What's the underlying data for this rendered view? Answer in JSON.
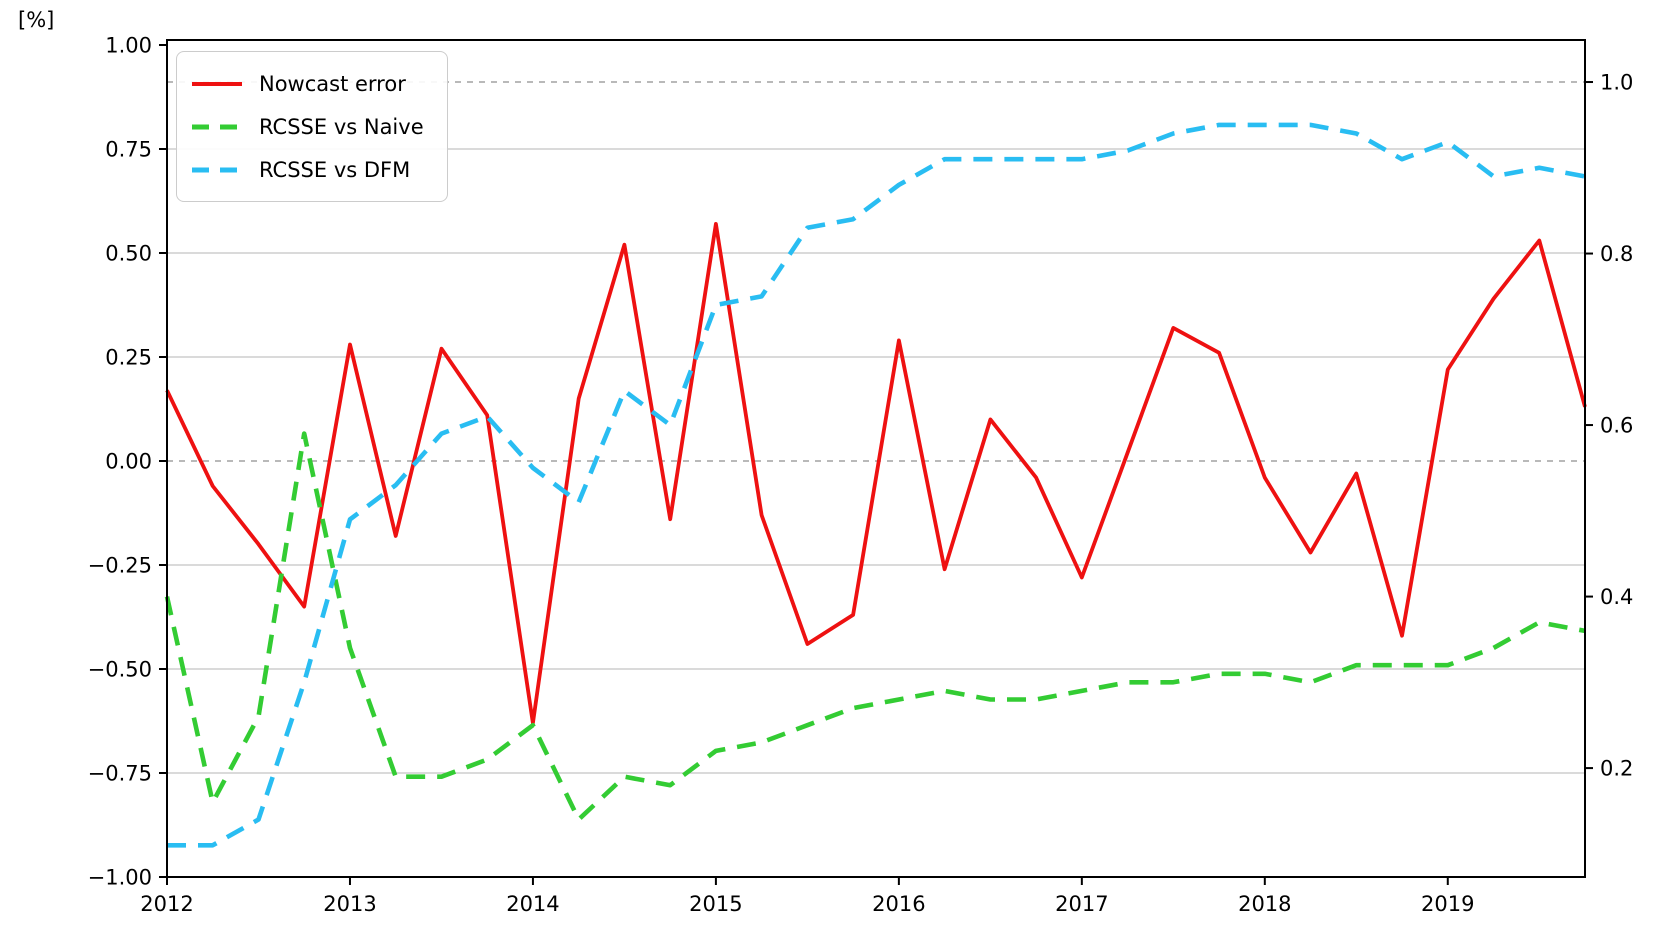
{
  "chart_data": {
    "type": "line",
    "title": "",
    "unit_label": "[%]",
    "grid": {
      "show": true,
      "solid_left_values": [
        0.75,
        0.5,
        0.25,
        -0.25,
        -0.5,
        -0.75
      ]
    },
    "ref_lines": [
      {
        "axis": "left",
        "value": 0.0,
        "style": "dashed"
      },
      {
        "axis": "right",
        "value": 1.0,
        "style": "dashed"
      }
    ],
    "legend": {
      "position": "upper-left"
    },
    "x_axis": {
      "min": 2012.0,
      "max": 2019.75,
      "ticks": [
        {
          "v": 2012,
          "label": "2012"
        },
        {
          "v": 2013,
          "label": "2013"
        },
        {
          "v": 2014,
          "label": "2014"
        },
        {
          "v": 2015,
          "label": "2015"
        },
        {
          "v": 2016,
          "label": "2016"
        },
        {
          "v": 2017,
          "label": "2017"
        },
        {
          "v": 2018,
          "label": "2018"
        },
        {
          "v": 2019,
          "label": "2019"
        }
      ]
    },
    "left_axis": {
      "label": "[%]",
      "min": -1.0,
      "max": 1.012,
      "ticks": [
        {
          "v": 1.0,
          "label": "1.00"
        },
        {
          "v": 0.75,
          "label": "0.75"
        },
        {
          "v": 0.5,
          "label": "0.50"
        },
        {
          "v": 0.25,
          "label": "0.25"
        },
        {
          "v": 0.0,
          "label": "0.00"
        },
        {
          "v": -0.25,
          "label": "−0.25"
        },
        {
          "v": -0.5,
          "label": "−0.50"
        },
        {
          "v": -0.75,
          "label": "−0.75"
        },
        {
          "v": -1.0,
          "label": "−1.00"
        }
      ]
    },
    "right_axis": {
      "label": "",
      "min": 0.073,
      "max": 1.049,
      "ticks": [
        {
          "v": 1.0,
          "label": "1.0"
        },
        {
          "v": 0.8,
          "label": "0.8"
        },
        {
          "v": 0.6,
          "label": "0.6"
        },
        {
          "v": 0.4,
          "label": "0.4"
        },
        {
          "v": 0.2,
          "label": "0.2"
        }
      ]
    },
    "x_values": [
      2012.0,
      2012.25,
      2012.5,
      2012.75,
      2013.0,
      2013.25,
      2013.5,
      2013.75,
      2014.0,
      2014.25,
      2014.5,
      2014.75,
      2015.0,
      2015.25,
      2015.5,
      2015.75,
      2016.0,
      2016.25,
      2016.5,
      2016.75,
      2017.0,
      2017.25,
      2017.5,
      2017.75,
      2018.0,
      2018.25,
      2018.5,
      2018.75,
      2019.0,
      2019.25,
      2019.5,
      2019.75
    ],
    "series": [
      {
        "name": "Nowcast error",
        "axis": "left",
        "color": "#ee1111",
        "style": "solid",
        "values": [
          0.17,
          -0.06,
          -0.2,
          -0.35,
          0.28,
          -0.18,
          0.27,
          0.11,
          -0.63,
          0.15,
          0.52,
          -0.14,
          0.57,
          -0.13,
          -0.44,
          -0.37,
          0.29,
          -0.26,
          0.1,
          -0.04,
          -0.28,
          0.02,
          0.32,
          0.26,
          -0.04,
          -0.22,
          -0.03,
          -0.42,
          0.22,
          0.39,
          0.53,
          0.13
        ]
      },
      {
        "name": "RCSSE vs Naive",
        "axis": "right",
        "color": "#33cc33",
        "style": "dashed",
        "values": [
          0.4,
          0.16,
          0.26,
          0.59,
          0.34,
          0.19,
          0.19,
          0.21,
          0.25,
          0.14,
          0.19,
          0.18,
          0.22,
          0.23,
          0.25,
          0.27,
          0.28,
          0.29,
          0.28,
          0.28,
          0.29,
          0.3,
          0.3,
          0.31,
          0.31,
          0.3,
          0.32,
          0.32,
          0.32,
          0.34,
          0.37,
          0.36
        ]
      },
      {
        "name": "RCSSE vs DFM",
        "axis": "right",
        "color": "#29bdf2",
        "style": "dashed",
        "values": [
          0.11,
          0.11,
          0.14,
          0.3,
          0.49,
          0.53,
          0.59,
          0.61,
          0.55,
          0.51,
          0.64,
          0.6,
          0.74,
          0.75,
          0.83,
          0.84,
          0.88,
          0.91,
          0.91,
          0.91,
          0.91,
          0.92,
          0.94,
          0.95,
          0.95,
          0.95,
          0.94,
          0.91,
          0.93,
          0.89,
          0.9,
          0.89
        ]
      }
    ]
  }
}
